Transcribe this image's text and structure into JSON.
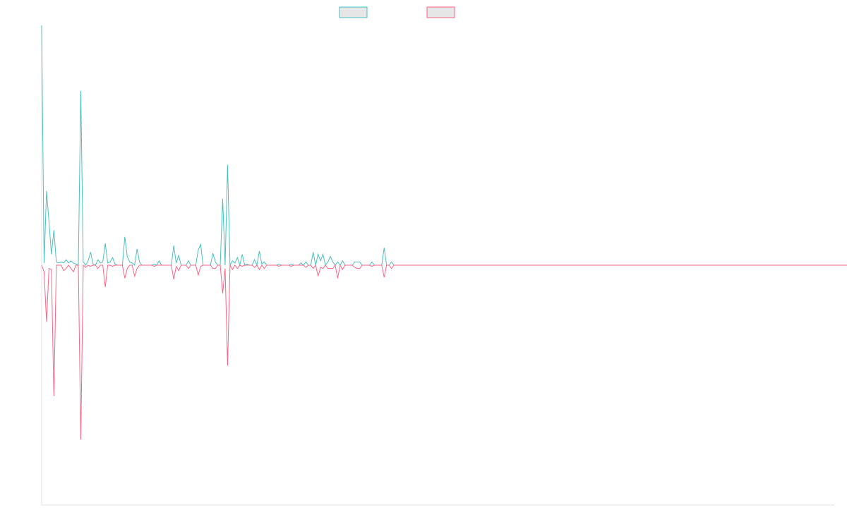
{
  "chart_data": {
    "type": "line",
    "title": "",
    "xlabel": "",
    "ylabel": "",
    "grid": false,
    "legend_position": "top-center",
    "x_count": 325,
    "ylim": [
      -22,
      22
    ],
    "series": [
      {
        "name": "",
        "color": "#4bc0c0",
        "legend_fill": "#e6e6e6",
        "values": [
          22.0,
          0.2,
          6.8,
          4.0,
          1.0,
          3.2,
          0.3,
          0.2,
          0.3,
          0.2,
          0.5,
          0.2,
          0.4,
          0.2,
          0.1,
          0.0,
          16.0,
          0.3,
          0.0,
          0.4,
          1.2,
          0.1,
          0.0,
          0.5,
          0.2,
          0.3,
          2.0,
          0.2,
          0.3,
          0.7,
          0.1,
          0.0,
          0.0,
          0.0,
          2.6,
          0.8,
          0.3,
          0.2,
          0.0,
          1.5,
          0.3,
          0.0,
          0.0,
          0.0,
          0.0,
          0.0,
          0.1,
          0.0,
          0.4,
          0.0,
          0.0,
          0.0,
          0.0,
          0.0,
          1.8,
          0.2,
          0.9,
          0.0,
          0.0,
          0.0,
          0.4,
          0.0,
          0.0,
          0.0,
          1.4,
          1.9,
          0.0,
          0.0,
          0.0,
          0.0,
          1.1,
          0.3,
          0.0,
          0.0,
          6.1,
          0.0,
          9.2,
          0.0,
          0.4,
          0.2,
          0.7,
          0.0,
          1.0,
          0.0,
          0.1,
          0.0,
          0.0,
          0.5,
          0.0,
          1.3,
          0.1,
          0.3,
          0.0,
          0.0,
          0.0,
          0.0,
          0.0,
          0.1,
          0.0,
          0.0,
          0.0,
          0.0,
          0.1,
          0.0,
          0.0,
          0.0,
          0.2,
          0.0,
          0.3,
          0.0,
          0.0,
          1.2,
          0.0,
          1.0,
          0.4,
          1.0,
          0.0,
          0.3,
          0.8,
          0.3,
          0.0,
          0.3,
          0.0,
          0.4,
          0.0,
          0.0,
          0.0,
          0.0,
          0.3,
          0.3,
          0.3,
          0.0,
          0.0,
          0.0,
          0.0,
          0.3,
          0.0,
          0.0,
          0.0,
          0.0,
          1.6,
          0.0,
          0.0,
          0.3,
          0.0,
          0.0,
          0.0,
          0.0,
          0.0,
          0.0,
          0.0,
          0.0,
          0.0,
          0.0,
          0.0,
          0.0,
          0.0,
          0.0,
          0.0,
          0.0,
          0.0,
          0.0,
          0.0,
          0.0,
          0.0,
          0.0,
          0.0,
          0.0,
          0.0,
          0.0,
          0.0,
          0.0,
          0.0,
          0.0,
          0.0,
          0.0,
          0.0,
          0.0,
          0.0,
          0.0,
          0.0,
          0.0,
          0.0,
          0.0,
          0.0,
          0.0,
          0.0,
          0.0,
          0.0,
          0.0,
          0.0,
          0.0,
          0.0,
          0.0,
          0.0,
          0.0,
          0.0,
          0.0,
          0.0,
          0.0,
          0.0,
          0.0,
          0.0,
          0.0,
          0.0,
          0.0,
          0.0,
          0.0,
          0.0,
          0.0,
          0.0,
          0.0,
          0.0,
          0.0,
          0.0,
          0.0,
          0.0,
          0.0,
          0.0,
          0.0,
          0.0,
          0.0,
          0.0,
          0.0,
          0.0,
          0.0,
          0.0,
          0.0,
          0.0,
          0.0,
          0.0,
          0.0,
          0.0,
          0.0,
          0.0,
          0.0,
          0.0,
          0.0,
          0.0,
          0.0,
          0.0,
          0.0,
          0.0,
          0.0,
          0.0,
          0.0,
          0.0,
          0.0,
          0.0,
          0.0,
          0.0,
          0.0,
          0.0,
          0.0,
          0.0,
          0.0,
          0.0,
          0.0,
          0.0,
          0.0,
          0.0,
          0.0,
          0.0,
          0.0,
          0.0,
          0.0,
          0.0,
          0.0,
          0.0,
          0.0,
          0.0,
          0.0,
          0.0,
          0.0,
          0.0,
          0.0,
          0.0,
          0.0,
          0.0,
          0.0,
          0.0,
          0.0,
          0.0,
          0.0,
          0.0,
          0.0,
          0.0,
          0.0,
          0.0,
          0.0,
          0.0,
          0.0,
          0.0,
          0.0,
          0.0,
          0.0,
          0.0,
          0.0,
          0.0,
          0.0,
          0.0,
          0.0,
          0.0,
          0.0,
          0.0,
          0.0,
          0.0,
          0.0,
          0.0,
          0.0,
          0.0,
          0.0,
          0.0,
          0.0,
          0.0,
          0.0,
          0.0,
          0.0,
          0.0,
          0.0,
          0.0,
          0.0,
          0.0,
          0.0,
          0.0,
          0.0,
          0.0,
          0.0,
          0.0
        ]
      },
      {
        "name": "",
        "color": "#ff6384",
        "legend_fill": "#e6e6e6",
        "values": [
          0.0,
          -0.6,
          -5.2,
          -0.3,
          -0.4,
          -12.0,
          0.0,
          0.0,
          0.0,
          -0.5,
          -0.3,
          0.0,
          -0.3,
          -0.6,
          0.0,
          0.0,
          -16.0,
          0.0,
          -0.2,
          0.0,
          -0.1,
          0.0,
          0.0,
          -0.3,
          0.0,
          0.0,
          -2.0,
          0.0,
          0.0,
          -0.1,
          0.0,
          0.0,
          0.0,
          0.0,
          -1.2,
          -0.3,
          0.0,
          0.0,
          -1.0,
          -0.3,
          0.0,
          0.0,
          0.0,
          0.0,
          0.0,
          0.0,
          -0.1,
          0.0,
          0.0,
          0.0,
          0.0,
          0.0,
          0.0,
          0.0,
          -1.3,
          -0.1,
          -0.5,
          0.0,
          0.0,
          0.0,
          -0.3,
          0.0,
          0.0,
          0.0,
          -0.9,
          -0.1,
          0.0,
          0.0,
          0.0,
          0.0,
          -0.3,
          -0.3,
          0.0,
          0.0,
          -2.6,
          -0.3,
          -9.2,
          0.0,
          -0.4,
          0.0,
          -0.3,
          0.0,
          -0.1,
          0.0,
          0.0,
          0.0,
          0.0,
          -0.2,
          0.0,
          -0.4,
          0.0,
          -0.3,
          0.0,
          0.0,
          0.0,
          0.0,
          0.0,
          -0.1,
          0.0,
          0.0,
          0.0,
          0.0,
          -0.1,
          0.0,
          0.0,
          0.0,
          0.0,
          0.0,
          -0.2,
          0.0,
          0.0,
          -0.3,
          0.0,
          -1.0,
          -0.2,
          -0.3,
          0.0,
          -0.3,
          -0.3,
          -0.3,
          0.0,
          -1.2,
          0.0,
          -0.4,
          0.0,
          0.0,
          0.0,
          0.0,
          -0.2,
          -0.3,
          -0.3,
          0.0,
          0.0,
          0.0,
          0.0,
          -0.1,
          0.0,
          0.0,
          0.0,
          0.0,
          -1.1,
          0.0,
          0.0,
          -0.3,
          0.0,
          0.0,
          0.0,
          0.0,
          0.0,
          0.0,
          0.0,
          0.0,
          0.0,
          0.0,
          0.0,
          0.0,
          0.0,
          0.0,
          0.0,
          0.0,
          0.0,
          0.0,
          0.0,
          0.0,
          0.0,
          0.0,
          0.0,
          0.0,
          0.0,
          0.0,
          0.0,
          0.0,
          0.0,
          0.0,
          0.0,
          0.0,
          0.0,
          0.0,
          0.0,
          0.0,
          0.0,
          0.0,
          0.0,
          0.0,
          0.0,
          0.0,
          0.0,
          0.0,
          0.0,
          0.0,
          0.0,
          0.0,
          0.0,
          0.0,
          0.0,
          0.0,
          0.0,
          0.0,
          0.0,
          0.0,
          0.0,
          0.0,
          0.0,
          0.0,
          0.0,
          0.0,
          0.0,
          0.0,
          0.0,
          0.0,
          0.0,
          0.0,
          0.0,
          0.0,
          0.0,
          0.0,
          0.0,
          0.0,
          0.0,
          0.0,
          0.0,
          0.0,
          0.0,
          0.0,
          0.0,
          0.0,
          0.0,
          0.0,
          0.0,
          0.0,
          0.0,
          0.0,
          0.0,
          0.0,
          0.0,
          0.0,
          0.0,
          0.0,
          0.0,
          0.0,
          0.0,
          0.0,
          0.0,
          0.0,
          0.0,
          0.0,
          0.0,
          0.0,
          0.0,
          0.0,
          0.0,
          0.0,
          0.0,
          0.0,
          0.0,
          0.0,
          0.0,
          0.0,
          0.0,
          0.0,
          0.0,
          0.0,
          0.0,
          0.0,
          0.0,
          0.0,
          0.0,
          0.0,
          0.0,
          0.0,
          0.0,
          0.0,
          0.0,
          0.0,
          0.0,
          0.0,
          0.0,
          0.0,
          0.0,
          0.0,
          0.0,
          0.0,
          0.0,
          0.0,
          0.0,
          0.0,
          0.0,
          0.0,
          0.0,
          0.0,
          0.0,
          0.0,
          0.0,
          0.0,
          0.0,
          0.0,
          0.0,
          0.0,
          0.0,
          0.0,
          0.0,
          0.0,
          0.0,
          0.0,
          0.0,
          0.0,
          0.0,
          0.0,
          0.0,
          0.0,
          0.0,
          0.0,
          0.0,
          0.0,
          0.0,
          0.0,
          0.0,
          0.0,
          0.0,
          0.0,
          0.0,
          0.0,
          0.0,
          0.0,
          0.0,
          0.0,
          0.0,
          0.0,
          0.0,
          0.0,
          0.0,
          0.0
        ]
      }
    ]
  }
}
